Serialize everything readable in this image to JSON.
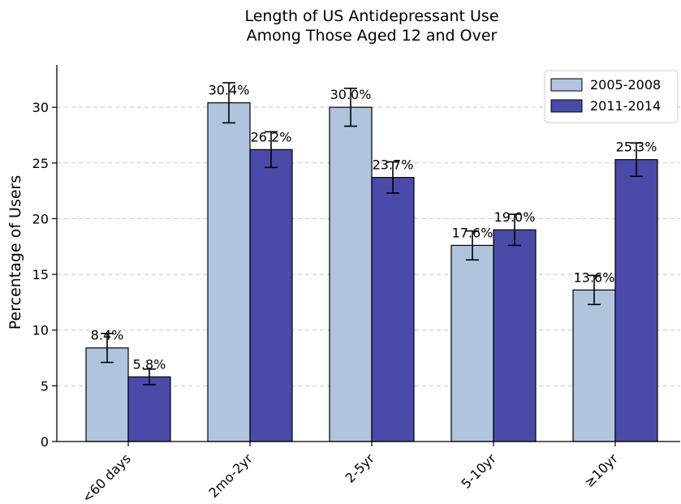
{
  "chart_data": {
    "type": "bar",
    "title_lines": [
      "Length of US Antidepressant Use",
      "Among Those Aged 12 and Over"
    ],
    "xlabel": "",
    "ylabel": "Percentage of Users",
    "categories": [
      "<60 days",
      "2mo-2yr",
      "2-5yr",
      "5-10yr",
      "≥10yr"
    ],
    "series": [
      {
        "name": "2005-2008",
        "color": "#b0c4de",
        "values": [
          8.4,
          30.4,
          30.0,
          17.6,
          13.6
        ],
        "errors": [
          1.3,
          1.8,
          1.7,
          1.3,
          1.3
        ],
        "labels": [
          "8.4%",
          "30.4%",
          "30.0%",
          "17.6%",
          "13.6%"
        ]
      },
      {
        "name": "2011-2014",
        "color": "#4a4aa8",
        "values": [
          5.8,
          26.2,
          23.7,
          19.0,
          25.3
        ],
        "errors": [
          0.7,
          1.6,
          1.4,
          1.4,
          1.5
        ],
        "labels": [
          "5.8%",
          "26.2%",
          "23.7%",
          "19.0%",
          "25.3%"
        ]
      }
    ],
    "ylim": [
      0,
      33.8
    ],
    "yticks": [
      0,
      5,
      10,
      15,
      20,
      25,
      30
    ],
    "grid": true,
    "legend_position": "top-right"
  }
}
